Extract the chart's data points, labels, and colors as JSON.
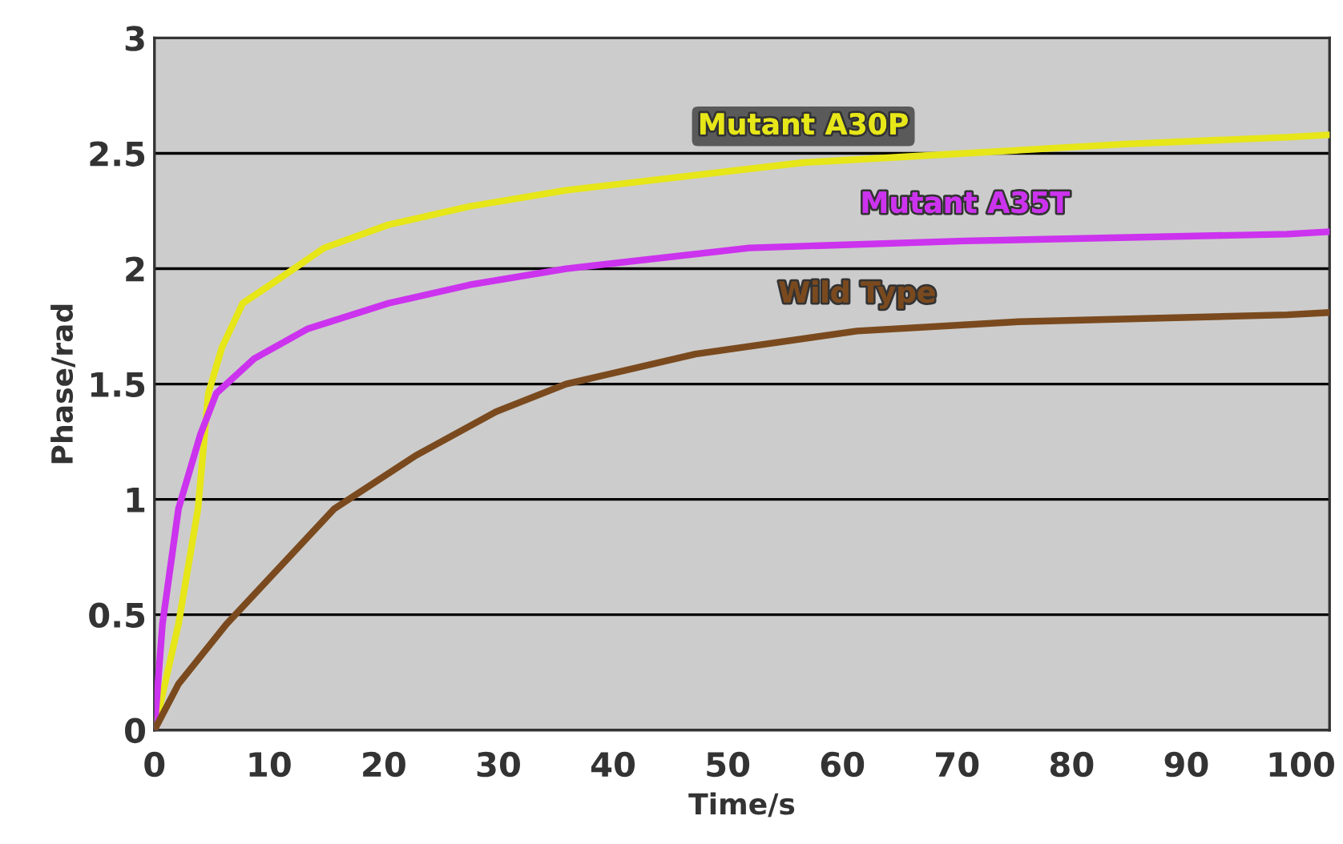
{
  "chart_data": {
    "type": "line",
    "xlabel": "Time/s",
    "ylabel": "Phase/rad",
    "xlim": [
      0,
      102.5
    ],
    "ylim": [
      0,
      3
    ],
    "xticks": [
      0,
      10,
      20,
      30,
      40,
      50,
      60,
      70,
      80,
      90,
      100
    ],
    "yticks": [
      0,
      0.5,
      1,
      1.5,
      2,
      2.5,
      3
    ],
    "grid": "y",
    "legend": false,
    "marker": "none",
    "line_style": "solid",
    "series": [
      {
        "name": "Mutant A30P",
        "color": "#e6e619",
        "x": [
          0,
          2.1,
          3.8,
          4.7,
          5.9,
          7.7,
          11,
          14.8,
          20.4,
          27.5,
          35.9,
          56.6,
          70.7,
          84.7,
          98.8,
          102.5
        ],
        "values": [
          0,
          0.46,
          0.96,
          1.46,
          1.66,
          1.85,
          1.96,
          2.09,
          2.19,
          2.27,
          2.34,
          2.46,
          2.5,
          2.54,
          2.57,
          2.58
        ]
      },
      {
        "name": "Mutant A35T",
        "color": "#cc33ee",
        "x": [
          0,
          0.7,
          2.1,
          4.0,
          5.4,
          8.7,
          13.4,
          20.4,
          27.5,
          35.9,
          51.9,
          70.7,
          98.8,
          102.5
        ],
        "values": [
          0,
          0.46,
          0.96,
          1.28,
          1.46,
          1.61,
          1.74,
          1.85,
          1.93,
          2.0,
          2.09,
          2.12,
          2.15,
          2.16
        ]
      },
      {
        "name": "Wild Type",
        "color": "#7a4a1e",
        "x": [
          0,
          2.1,
          6.3,
          15.7,
          22.8,
          29.8,
          35.9,
          47.2,
          61.3,
          75.4,
          98.8,
          102.5
        ],
        "values": [
          0,
          0.2,
          0.46,
          0.96,
          1.19,
          1.38,
          1.5,
          1.63,
          1.73,
          1.77,
          1.8,
          1.81
        ]
      }
    ]
  }
}
